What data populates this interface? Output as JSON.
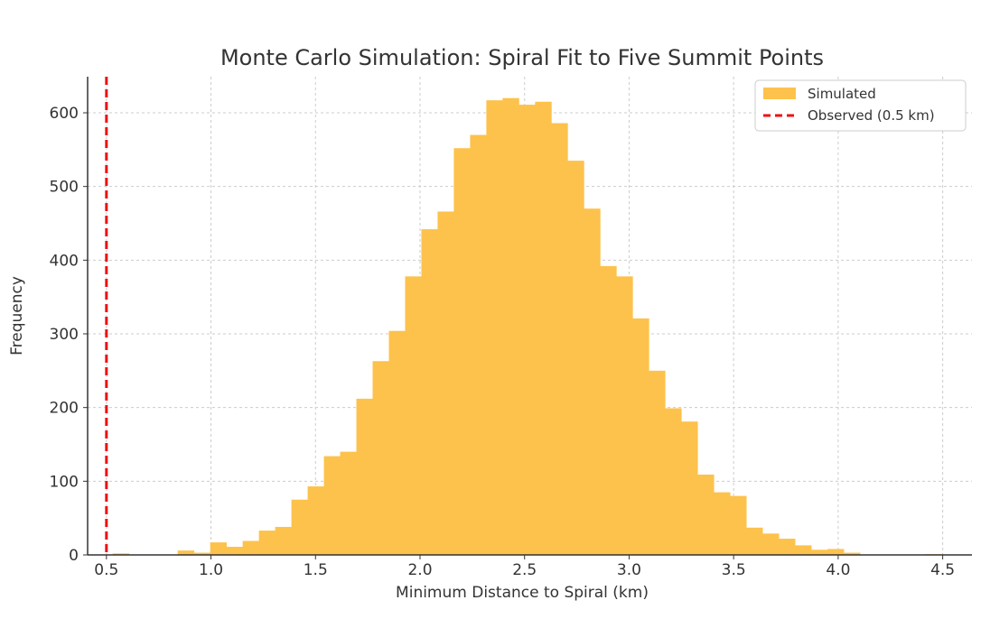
{
  "chart_data": {
    "type": "bar",
    "title": "Monte Carlo Simulation: Spiral Fit to Five Summit Points",
    "xlabel": "Minimum Distance to Spiral (km)",
    "ylabel": "Frequency",
    "xlim": [
      0.41,
      4.64
    ],
    "ylim": [
      0,
      649
    ],
    "xticks": [
      "0.5",
      "1.0",
      "1.5",
      "2.0",
      "2.5",
      "3.0",
      "3.5",
      "4.0",
      "4.5"
    ],
    "xtick_values": [
      0.5,
      1.0,
      1.5,
      2.0,
      2.5,
      3.0,
      3.5,
      4.0,
      4.5
    ],
    "yticks": [
      "0",
      "100",
      "200",
      "300",
      "400",
      "500",
      "600"
    ],
    "ytick_values": [
      0,
      100,
      200,
      300,
      400,
      500,
      600
    ],
    "grid": true,
    "legend_position": "top-right",
    "histogram": {
      "name": "Simulated",
      "color": "#fdc24c",
      "bin_start": 0.53,
      "bin_width": 0.0777,
      "counts": [
        2,
        0,
        0,
        0,
        6,
        3,
        17,
        11,
        19,
        33,
        38,
        75,
        93,
        134,
        140,
        212,
        263,
        304,
        378,
        442,
        466,
        552,
        570,
        617,
        620,
        611,
        615,
        586,
        535,
        470,
        392,
        378,
        321,
        250,
        199,
        181,
        109,
        85,
        80,
        37,
        29,
        22,
        13,
        7,
        8,
        3,
        0,
        0,
        0,
        0,
        1
      ]
    },
    "vline": {
      "name": "Observed (0.5 km)",
      "x": 0.5,
      "color": "#ee1111"
    }
  }
}
